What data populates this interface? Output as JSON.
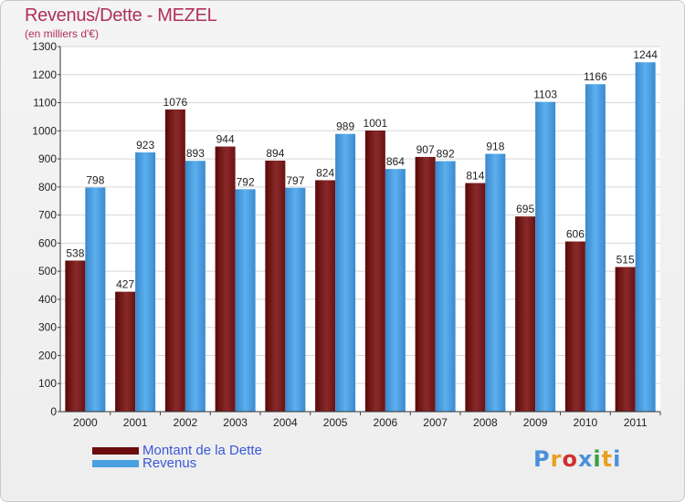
{
  "title": "Revenus/Dette - MEZEL",
  "subtitle": "(en milliers d'€)",
  "brand": {
    "text": "Proxiti",
    "colors": [
      "#4a90d9",
      "#e8a020",
      "#d03030",
      "#4a90d9",
      "#3aa040",
      "#e8a020",
      "#4a90d9"
    ]
  },
  "chart_data": {
    "type": "bar",
    "title": "Revenus/Dette - MEZEL",
    "ylabel": "(en milliers d'€)",
    "xlabel": "",
    "ylim": [
      0,
      1300
    ],
    "yticks": [
      0,
      100,
      200,
      300,
      400,
      500,
      600,
      700,
      800,
      900,
      1000,
      1100,
      1200,
      1300
    ],
    "grid": true,
    "legend_position": "bottom-left",
    "categories": [
      "2000",
      "2001",
      "2002",
      "2003",
      "2004",
      "2005",
      "2006",
      "2007",
      "2008",
      "2009",
      "2010",
      "2011"
    ],
    "series": [
      {
        "name": "Montant de la Dette",
        "color": "#7a1a1a",
        "values": [
          538,
          427,
          1076,
          944,
          894,
          824,
          1001,
          907,
          814,
          695,
          606,
          515
        ]
      },
      {
        "name": "Revenus",
        "color": "#4aa0e0",
        "values": [
          798,
          923,
          893,
          792,
          797,
          989,
          864,
          892,
          918,
          1103,
          1166,
          1244
        ]
      }
    ]
  }
}
